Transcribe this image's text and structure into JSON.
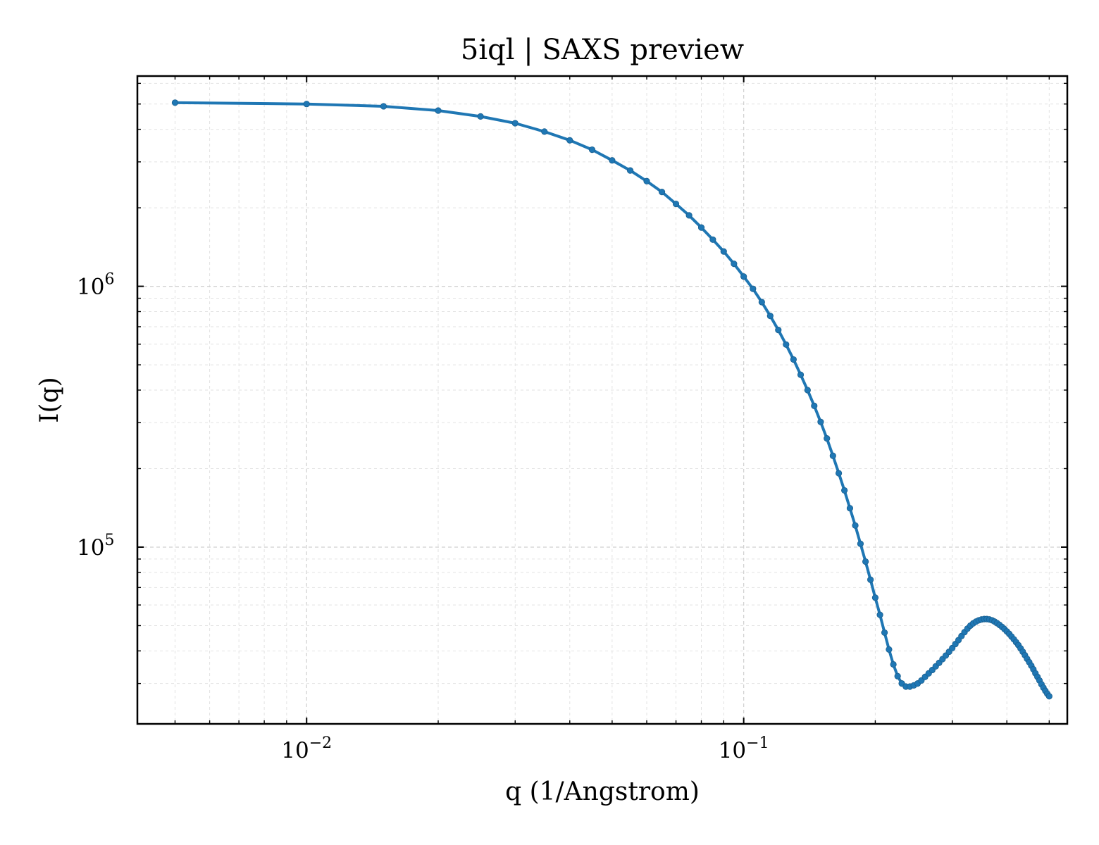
{
  "chart_data": {
    "type": "line",
    "title": "5iql | SAXS preview",
    "xlabel": "q (1/Angstrom)",
    "ylabel": "I(q)",
    "xscale": "log",
    "yscale": "log",
    "xlim": [
      0.0041,
      0.55
    ],
    "ylim": [
      21000,
      6400000
    ],
    "grid": true,
    "legend": "none",
    "x_ticks": [
      {
        "value": 0.01,
        "base": "10",
        "exp": "−2"
      },
      {
        "value": 0.1,
        "base": "10",
        "exp": "−1"
      }
    ],
    "y_ticks": [
      {
        "value": 100000,
        "base": "10",
        "exp": "5"
      },
      {
        "value": 1000000,
        "base": "10",
        "exp": "6"
      }
    ],
    "color": "#1f77b4",
    "series": [
      {
        "x": [
          0.005,
          0.01,
          0.015,
          0.02,
          0.025,
          0.03,
          0.035,
          0.04,
          0.045,
          0.05,
          0.055,
          0.06,
          0.065,
          0.07,
          0.075,
          0.08,
          0.085,
          0.09,
          0.095,
          0.1,
          0.105,
          0.11,
          0.115,
          0.12,
          0.125,
          0.13,
          0.135,
          0.14,
          0.145,
          0.15,
          0.155,
          0.16,
          0.165,
          0.17,
          0.175,
          0.18,
          0.185,
          0.19,
          0.195,
          0.2,
          0.205,
          0.21,
          0.215,
          0.22,
          0.225,
          0.23,
          0.235,
          0.24,
          0.245,
          0.25,
          0.255,
          0.26,
          0.265,
          0.27,
          0.275,
          0.28,
          0.285,
          0.29,
          0.295,
          0.3,
          0.305,
          0.31,
          0.315,
          0.32,
          0.325,
          0.33,
          0.335,
          0.34,
          0.345,
          0.35,
          0.355,
          0.36,
          0.365,
          0.37,
          0.375,
          0.38,
          0.385,
          0.39,
          0.395,
          0.4,
          0.405,
          0.41,
          0.415,
          0.42,
          0.425,
          0.43,
          0.435,
          0.44,
          0.445,
          0.45,
          0.455,
          0.46,
          0.465,
          0.47,
          0.475,
          0.48,
          0.485,
          0.49,
          0.495,
          0.5
        ],
        "y": [
          5060000,
          5000000,
          4900000,
          4720000,
          4480000,
          4220000,
          3920000,
          3630000,
          3340000,
          3040000,
          2780000,
          2530000,
          2300000,
          2070000,
          1870000,
          1680000,
          1510000,
          1360000,
          1220000,
          1090000,
          978000,
          870000,
          770000,
          680000,
          598000,
          524000,
          458000,
          400000,
          348000,
          302000,
          261000,
          224000,
          192000,
          165000,
          141000,
          121000,
          103000,
          88000,
          75000,
          64000,
          55000,
          47000,
          40500,
          35500,
          32000,
          30000,
          29200,
          29200,
          29500,
          30000,
          30800,
          31800,
          32800,
          33800,
          34900,
          36000,
          37200,
          38400,
          39700,
          41000,
          42500,
          44000,
          45600,
          47200,
          48700,
          50000,
          51000,
          51800,
          52400,
          52800,
          53000,
          53000,
          52800,
          52400,
          51800,
          51100,
          50300,
          49400,
          48500,
          47500,
          46500,
          45400,
          44300,
          43200,
          42100,
          40900,
          39700,
          38500,
          37300,
          36200,
          35100,
          34000,
          32800,
          31800,
          30800,
          29800,
          28900,
          28100,
          27400,
          26800
        ]
      }
    ]
  }
}
